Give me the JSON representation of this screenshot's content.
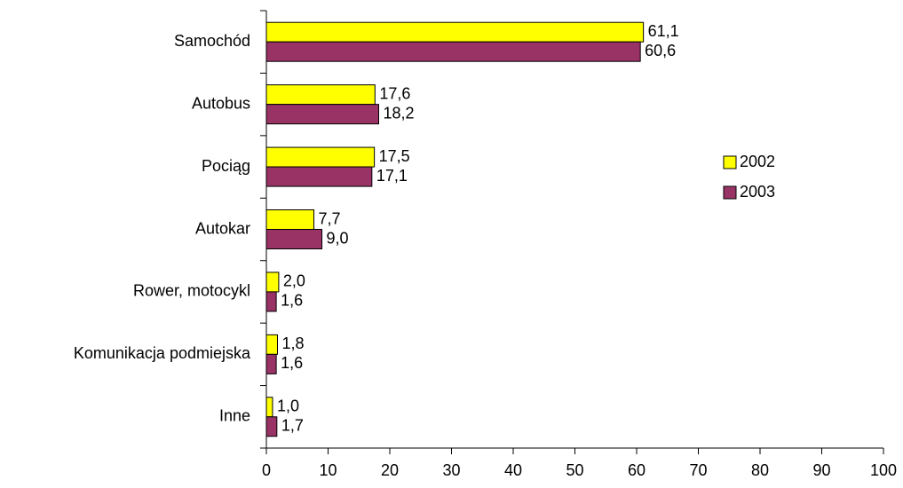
{
  "chart_data": {
    "type": "barh",
    "categories": [
      "Samochód",
      "Autobus",
      "Pociąg",
      "Autokar",
      "Rower, motocykl",
      "Komunikacja podmiejska",
      "Inne"
    ],
    "series": [
      {
        "name": "2002",
        "color": "#ffff00",
        "values": [
          61.1,
          17.6,
          17.5,
          7.7,
          2.0,
          1.8,
          1.0
        ],
        "value_labels": [
          "61,1",
          "17,6",
          "17,5",
          "7,7",
          "2,0",
          "1,8",
          "1,0"
        ]
      },
      {
        "name": "2003",
        "color": "#993366",
        "values": [
          60.6,
          18.2,
          17.1,
          9.0,
          1.6,
          1.6,
          1.7
        ],
        "value_labels": [
          "60,6",
          "18,2",
          "17,1",
          "9,0",
          "1,6",
          "1,6",
          "1,7"
        ]
      }
    ],
    "xlim": [
      0,
      100
    ],
    "xticks": [
      0,
      10,
      20,
      30,
      40,
      50,
      60,
      70,
      80,
      90,
      100
    ],
    "legend": "right"
  }
}
